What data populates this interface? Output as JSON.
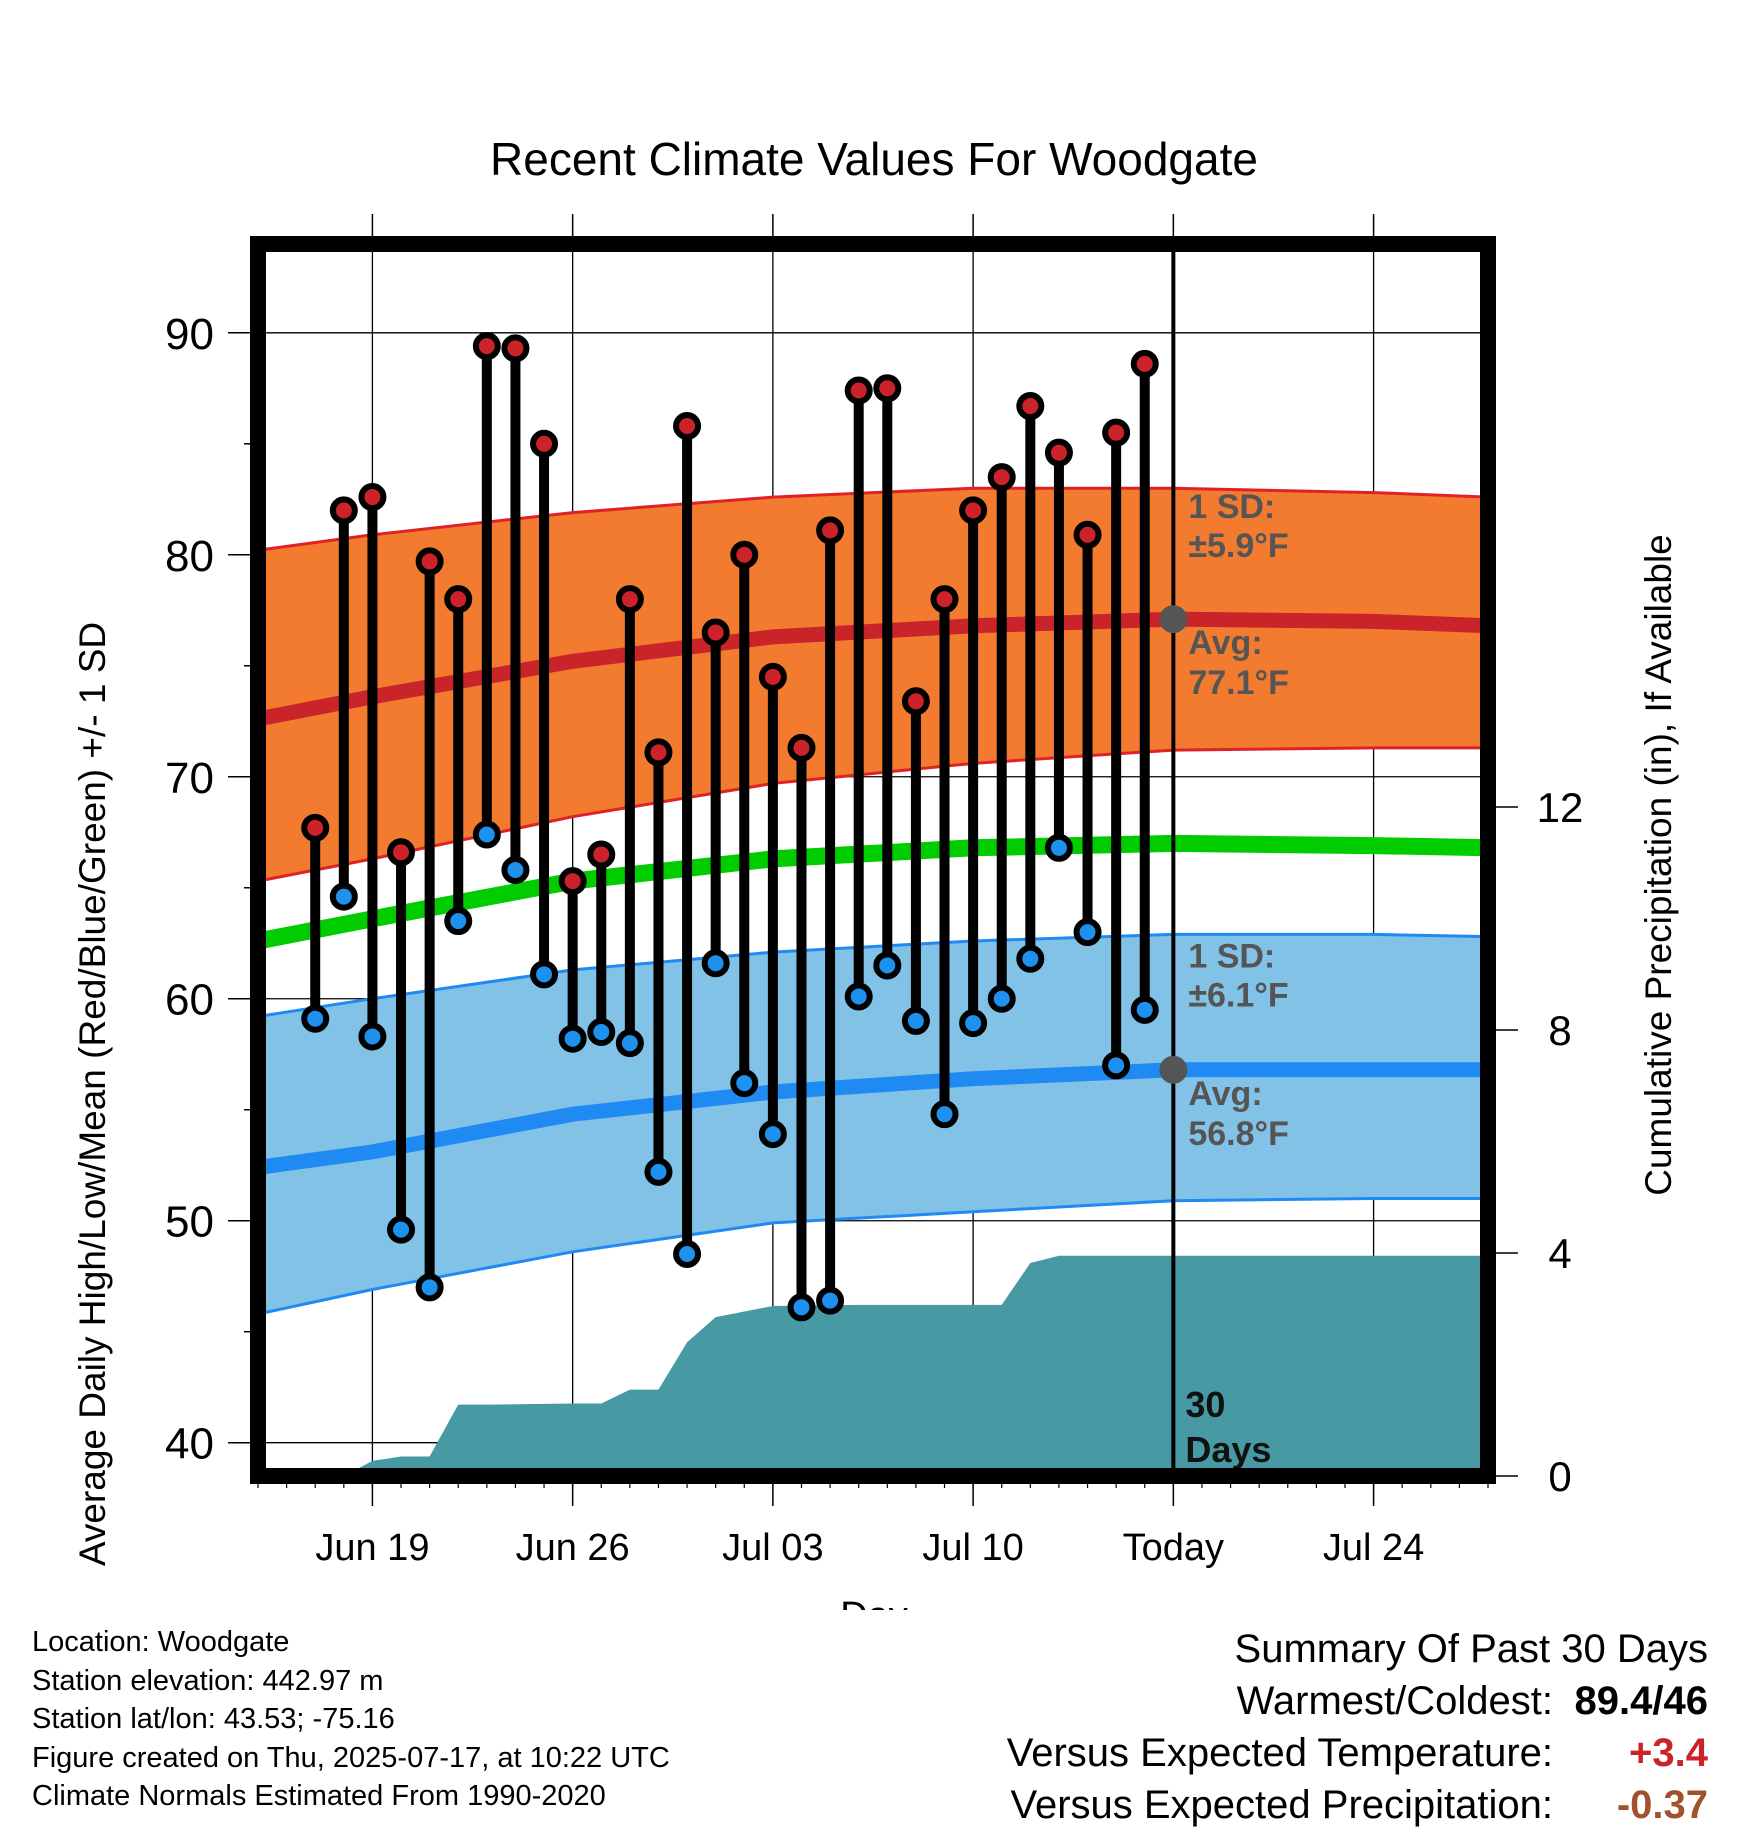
{
  "chart_data": {
    "type": "line",
    "title": "Recent Climate Values For Woodgate",
    "xlabel": "Day",
    "ylabel_left": "Average Daily High/Low/Mean (Red/Blue/Green) +/- 1 SD",
    "ylabel_right": "Cumulative Precipitation (in), If Available",
    "ylim_left": [
      38.5,
      94
    ],
    "yticks_left": [
      40,
      50,
      60,
      70,
      80,
      90
    ],
    "ylim_right": [
      0,
      22.1
    ],
    "yticks_right": [
      0,
      4,
      8,
      12
    ],
    "xlim": [
      "2025-06-15",
      "2025-07-28"
    ],
    "x_ticks": [
      {
        "date": "2025-06-19",
        "label": "Jun 19"
      },
      {
        "date": "2025-06-26",
        "label": "Jun 26"
      },
      {
        "date": "2025-07-03",
        "label": "Jul 03"
      },
      {
        "date": "2025-07-10",
        "label": "Jul 10"
      },
      {
        "date": "2025-07-17",
        "label": "Today"
      },
      {
        "date": "2025-07-24",
        "label": "Jul 24"
      }
    ],
    "grid": true,
    "today": "2025-07-17",
    "today_label": [
      "30",
      "Days"
    ],
    "normals": {
      "dates": [
        "2025-06-15",
        "2025-06-19",
        "2025-06-26",
        "2025-07-03",
        "2025-07-10",
        "2025-07-17",
        "2025-07-24",
        "2025-07-28"
      ],
      "high_avg": [
        72.6,
        73.6,
        75.2,
        76.3,
        76.8,
        77.1,
        77.0,
        76.8
      ],
      "high_upper": [
        80.2,
        80.9,
        81.9,
        82.6,
        83.0,
        83.0,
        82.8,
        82.6
      ],
      "high_lower": [
        65.3,
        66.3,
        68.2,
        69.7,
        70.6,
        71.2,
        71.3,
        71.3
      ],
      "mean_avg": [
        62.6,
        63.6,
        65.3,
        66.3,
        66.8,
        67.0,
        66.9,
        66.8
      ],
      "low_avg": [
        52.4,
        53.1,
        54.8,
        55.8,
        56.4,
        56.8,
        56.8,
        56.8
      ],
      "low_upper": [
        59.2,
        60.0,
        61.3,
        62.1,
        62.6,
        62.9,
        62.9,
        62.8
      ],
      "low_lower": [
        45.8,
        46.9,
        48.6,
        49.9,
        50.4,
        50.9,
        51.0,
        51.0
      ]
    },
    "annotations": {
      "high_sd": [
        "1 SD:",
        "±5.9°F"
      ],
      "high_avg": [
        "Avg:",
        "77.1°F"
      ],
      "low_sd": [
        "1 SD:",
        "±6.1°F"
      ],
      "low_avg": [
        "Avg:",
        "56.8°F"
      ]
    },
    "daily": {
      "dates": [
        "2025-06-17",
        "2025-06-18",
        "2025-06-19",
        "2025-06-20",
        "2025-06-21",
        "2025-06-22",
        "2025-06-23",
        "2025-06-24",
        "2025-06-25",
        "2025-06-26",
        "2025-06-27",
        "2025-06-28",
        "2025-06-29",
        "2025-06-30",
        "2025-07-01",
        "2025-07-02",
        "2025-07-03",
        "2025-07-04",
        "2025-07-05",
        "2025-07-06",
        "2025-07-07",
        "2025-07-08",
        "2025-07-09",
        "2025-07-10",
        "2025-07-11",
        "2025-07-12",
        "2025-07-13",
        "2025-07-14",
        "2025-07-15",
        "2025-07-16"
      ],
      "high": [
        67.7,
        82.0,
        82.6,
        66.6,
        79.7,
        78.0,
        89.4,
        89.3,
        85.0,
        65.3,
        66.5,
        78.0,
        71.1,
        85.8,
        76.5,
        80.0,
        74.5,
        71.3,
        81.1,
        87.4,
        87.5,
        73.4,
        78.0,
        82.0,
        83.5,
        86.7,
        84.6,
        80.9,
        85.5,
        88.6
      ],
      "low": [
        59.1,
        64.6,
        58.3,
        49.6,
        47.0,
        63.5,
        67.4,
        65.8,
        61.1,
        58.2,
        58.5,
        58.0,
        52.2,
        48.5,
        61.6,
        56.2,
        53.9,
        46.1,
        46.4,
        60.1,
        61.5,
        59.0,
        54.8,
        58.9,
        60.0,
        61.8,
        66.8,
        63.0,
        57.0,
        59.5
      ]
    },
    "precip": {
      "dates": [
        "2025-06-18",
        "2025-06-19",
        "2025-06-20",
        "2025-06-21",
        "2025-06-22",
        "2025-06-23",
        "2025-06-26",
        "2025-06-27",
        "2025-06-28",
        "2025-06-29",
        "2025-06-30",
        "2025-07-01",
        "2025-07-03",
        "2025-07-06",
        "2025-07-11",
        "2025-07-12",
        "2025-07-13",
        "2025-07-28"
      ],
      "cumulative": [
        0.0,
        0.27,
        0.35,
        0.35,
        1.28,
        1.28,
        1.3,
        1.3,
        1.55,
        1.55,
        2.4,
        2.85,
        3.05,
        3.07,
        3.07,
        3.82,
        3.95,
        3.95
      ]
    },
    "colors": {
      "high_band": "#f37b2f",
      "high_line": "#c8242a",
      "high_edge": "#e02226",
      "mean_line": "#00cc00",
      "low_band": "#82c2e7",
      "low_line": "#1f8bf2",
      "precip": "#4799a3",
      "high_dot": "#cc2229",
      "low_dot": "#1e90ee",
      "today_dot": "#555555",
      "annotation": "#555555"
    }
  },
  "info": {
    "location": "Location: Woodgate",
    "elevation": "Station elevation: 442.97 m",
    "latlon": "Station lat/lon: 43.53; -75.16",
    "created": "Figure created on Thu, 2025-07-17, at 10:22 UTC",
    "normals": "Climate Normals Estimated From 1990-2020"
  },
  "summary": {
    "heading": "Summary Of Past 30 Days",
    "warm_label": "Warmest/Coldest:",
    "warm_value": "89.4/46",
    "temp_label": "Versus Expected Temperature:",
    "temp_value": "+3.4",
    "temp_color": "#cc2229",
    "precip_label": "Versus Expected Precipitation:",
    "precip_value": "-0.37",
    "precip_color": "#a0522d"
  }
}
